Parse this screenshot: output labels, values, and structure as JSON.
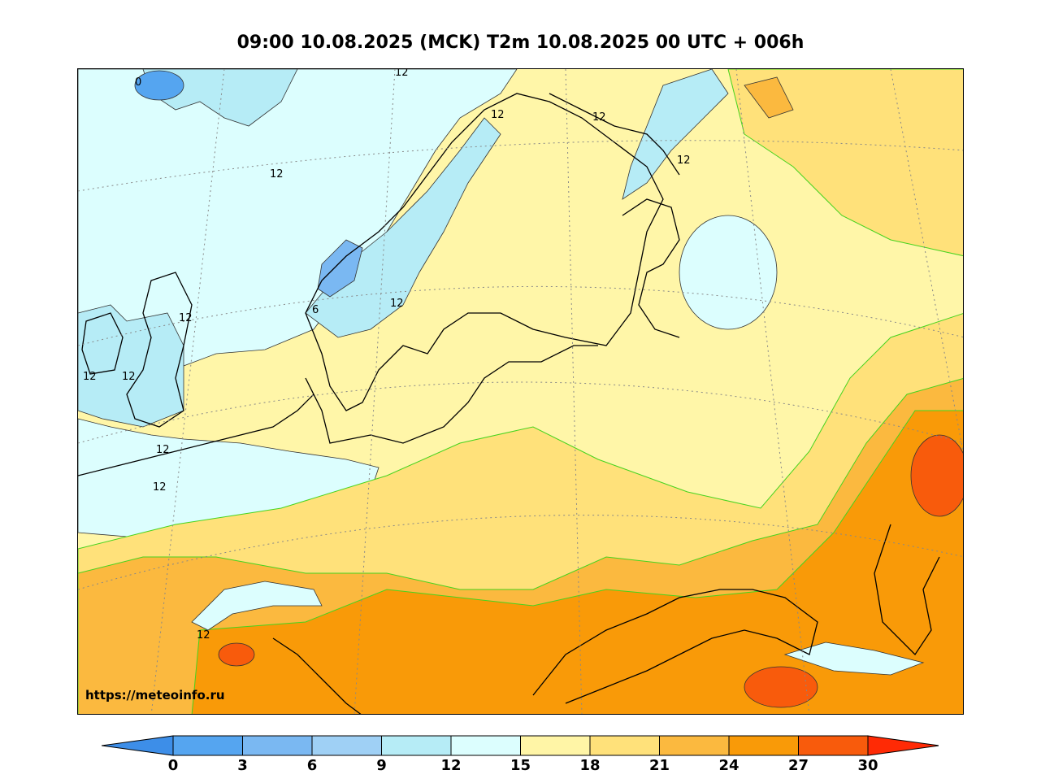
{
  "title": "09:00 10.08.2025 (MCK) T2m 10.08.2025 00 UTC + 006h",
  "watermark": "https://meteoinfo.ru",
  "colorbar": {
    "ticks": [
      "0",
      "3",
      "6",
      "9",
      "12",
      "15",
      "18",
      "21",
      "24",
      "27",
      "30"
    ],
    "colors": [
      "#3d8ee8",
      "#55a5f0",
      "#7ab8f2",
      "#9fd0f5",
      "#b6ecf6",
      "#dcfefe",
      "#fff5a6",
      "#ffe17a",
      "#fbb93f",
      "#f99a08",
      "#f85b0c",
      "#ff2a05"
    ]
  },
  "contour_labels": [
    {
      "text": "0"
    },
    {
      "text": "12"
    },
    {
      "text": "12"
    },
    {
      "text": "12"
    },
    {
      "text": "12"
    },
    {
      "text": "12"
    },
    {
      "text": "6"
    },
    {
      "text": "12"
    },
    {
      "text": "12"
    },
    {
      "text": "12"
    },
    {
      "text": "12"
    },
    {
      "text": "12"
    },
    {
      "text": "12"
    },
    {
      "text": "12"
    }
  ]
}
